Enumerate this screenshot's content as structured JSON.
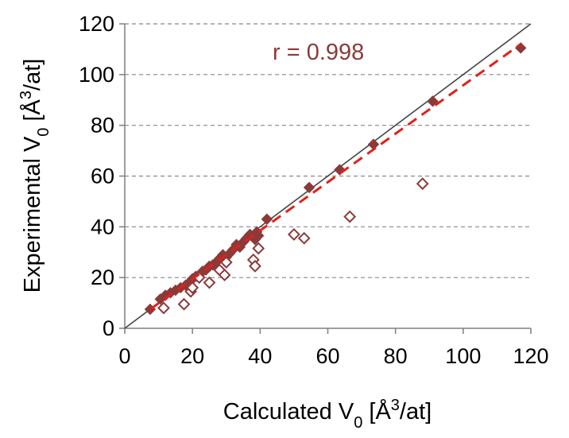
{
  "chart_data": {
    "type": "scatter",
    "title": "",
    "xlabel": "Calculated V",
    "xlabel_sub": "0",
    "xlabel_pre": " [Å",
    "xlabel_sup": "3",
    "xlabel_post": "/at]",
    "ylabel": "Experimental V",
    "ylabel_sub": "0",
    "ylabel_pre": " [Å",
    "ylabel_sup": "3",
    "ylabel_post": "/at]",
    "xlim": [
      0,
      120
    ],
    "ylim": [
      0,
      120
    ],
    "xticks": [
      0,
      20,
      40,
      60,
      80,
      100,
      120
    ],
    "yticks": [
      0,
      20,
      40,
      60,
      80,
      100,
      120
    ],
    "grid": "horizontal dashed",
    "annotation": "r = 0.998",
    "colors": {
      "marker": "#8B3A3A",
      "fit": "#E0201A",
      "diagonal": "#444444",
      "grid": "#888888"
    },
    "series": [
      {
        "name": "filled",
        "marker": "filled-diamond",
        "x": [
          7.5,
          10.5,
          12,
          13.5,
          15,
          16.5,
          18,
          19,
          20,
          21,
          22,
          23,
          24,
          25,
          26,
          27,
          28,
          29,
          30,
          31,
          32,
          33,
          34,
          35,
          36,
          37,
          38,
          38.5,
          39,
          39.5,
          42,
          54.5,
          63.5,
          73.5,
          91,
          117
        ],
        "y": [
          7.5,
          11.5,
          13,
          14,
          15,
          16,
          17,
          18,
          19.5,
          20.5,
          21,
          22.5,
          23,
          24.5,
          25,
          26,
          27.5,
          29,
          28,
          29.5,
          31,
          33,
          32,
          34,
          35.5,
          37,
          36,
          35,
          38,
          36.5,
          43,
          55.5,
          62.5,
          72.5,
          89.5,
          110.5
        ]
      },
      {
        "name": "open",
        "marker": "open-diamond",
        "x": [
          11.5,
          17.5,
          19.5,
          20,
          22,
          25,
          28,
          29.5,
          30,
          38,
          38.5,
          39.5,
          50,
          53,
          66.5,
          88
        ],
        "y": [
          8,
          9.5,
          14.5,
          16,
          20,
          18,
          23,
          21,
          26,
          27,
          24.5,
          31.5,
          37,
          35.5,
          44,
          57
        ]
      }
    ],
    "fit_line": {
      "style": "dashed",
      "x": [
        7.5,
        117
      ],
      "y": [
        7.5,
        112
      ]
    },
    "identity_line": {
      "style": "solid",
      "x": [
        0,
        120
      ],
      "y": [
        0,
        120
      ]
    }
  }
}
